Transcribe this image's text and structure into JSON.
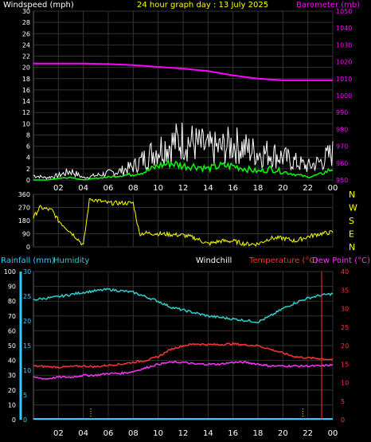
{
  "colors": {
    "background": "#000000",
    "wind": "#ffffff",
    "wind_avg": "#00ff00",
    "barometer": "#ff00ff",
    "direction": "#ffff00",
    "rain": "#33ccff",
    "humidity": "#33cccc",
    "temperature": "#ff3333",
    "dewpoint": "#ff33ff",
    "windchill": "#ffffff",
    "grid": "#333333"
  },
  "chart_data": [
    {
      "type": "line",
      "title": "24 hour graph day : 13 July 2025",
      "left_label": "Windspeed (mph)",
      "right_label": "Barometer (mb)",
      "x_ticks": [
        "02",
        "04",
        "06",
        "08",
        "10",
        "12",
        "14",
        "16",
        "18",
        "20",
        "22",
        "00"
      ],
      "y_left_ticks": [
        "0",
        "2",
        "4",
        "6",
        "8",
        "10",
        "12",
        "14",
        "16",
        "18",
        "20",
        "22",
        "24",
        "26",
        "28",
        "30"
      ],
      "y_left_range": [
        0,
        30
      ],
      "y_right_ticks": [
        "950",
        "960",
        "970",
        "980",
        "990",
        "1000",
        "1010",
        "1020",
        "1030",
        "1040",
        "1050"
      ],
      "y_right_range": [
        950,
        1050
      ],
      "series": [
        {
          "key": "barometer",
          "axis": "right",
          "x": [
            0,
            2,
            4,
            6,
            8,
            10,
            12,
            14,
            16,
            18,
            20,
            22,
            24
          ],
          "y": [
            1019,
            1019,
            1019,
            1018.7,
            1018,
            1017,
            1016,
            1014.5,
            1012,
            1010,
            1009,
            1009,
            1009
          ]
        },
        {
          "key": "wind_gust",
          "axis": "left",
          "x": [
            0,
            1,
            2,
            3,
            4,
            5,
            6,
            7,
            8,
            9,
            10,
            11,
            12,
            13,
            14,
            15,
            16,
            17,
            18,
            19,
            20,
            21,
            22,
            23,
            24
          ],
          "y": [
            1,
            0.5,
            1,
            2,
            0.5,
            1,
            1.5,
            2,
            3,
            5,
            7,
            8,
            9,
            8,
            7,
            7,
            8,
            7,
            6,
            6,
            5,
            4,
            3,
            4,
            6
          ]
        },
        {
          "key": "wind_avg",
          "axis": "left",
          "x": [
            0,
            1,
            2,
            3,
            4,
            5,
            6,
            7,
            8,
            9,
            10,
            11,
            12,
            13,
            14,
            15,
            16,
            17,
            18,
            19,
            20,
            21,
            22,
            23,
            24
          ],
          "y": [
            0,
            0,
            0.3,
            0.5,
            0,
            0.3,
            0.5,
            0.8,
            1,
            1.5,
            2.5,
            3,
            2.5,
            2.5,
            2,
            2.5,
            2.5,
            2,
            1.5,
            2,
            1.5,
            1,
            0.5,
            1,
            2
          ]
        }
      ]
    },
    {
      "type": "line",
      "title": "",
      "right_labels": [
        "N",
        "W",
        "S",
        "E",
        "N"
      ],
      "y_left_ticks": [
        "360",
        "270",
        "180",
        "90",
        "0"
      ],
      "y_left_range": [
        0,
        360
      ],
      "series": [
        {
          "key": "direction",
          "x": [
            0,
            0.5,
            1,
            1.5,
            2,
            2.5,
            3,
            3.5,
            4,
            4.5,
            5,
            5.5,
            6,
            6.5,
            7,
            7.5,
            8,
            8.5,
            9,
            10,
            11,
            12,
            13,
            14,
            15,
            16,
            17,
            18,
            19,
            20,
            21,
            22,
            23,
            24
          ],
          "y": [
            200,
            270,
            260,
            250,
            180,
            140,
            100,
            60,
            10,
            330,
            320,
            310,
            300,
            300,
            300,
            300,
            300,
            90,
            95,
            90,
            85,
            80,
            60,
            20,
            40,
            40,
            20,
            20,
            60,
            60,
            40,
            70,
            90,
            100
          ]
        }
      ]
    },
    {
      "type": "line",
      "title": "",
      "labels": {
        "rain": "Rainfall (mm)",
        "humidity": "Humidity",
        "windchill": "Windchill",
        "temperature": "Temperature (°C)",
        "dewpoint": "Dew Point (°C)"
      },
      "x_ticks": [
        "02",
        "04",
        "06",
        "08",
        "10",
        "12",
        "14",
        "16",
        "18",
        "20",
        "22",
        "00"
      ],
      "y_humidity_ticks": [
        "0",
        "10",
        "20",
        "30",
        "40",
        "50",
        "60",
        "70",
        "80",
        "90",
        "100"
      ],
      "y_humidity_range": [
        0,
        100
      ],
      "y_rain_ticks": [
        "0",
        "5",
        "10",
        "15",
        "20",
        "25",
        "30"
      ],
      "y_rain_range": [
        0,
        30
      ],
      "y_temp_ticks": [
        "0",
        "5",
        "10",
        "15",
        "20",
        "25",
        "30",
        "35",
        "40"
      ],
      "y_temp_range": [
        0,
        40
      ],
      "series": [
        {
          "key": "humidity",
          "axis": "humidity",
          "x": [
            0,
            2,
            4,
            5,
            6,
            7,
            8,
            9,
            10,
            11,
            12,
            13,
            14,
            15,
            16,
            17,
            18,
            19,
            20,
            21,
            22,
            23,
            24
          ],
          "y": [
            81,
            83,
            86,
            87,
            88,
            87,
            86,
            83,
            80,
            76,
            74,
            72,
            70,
            69,
            68,
            67,
            66,
            70,
            75,
            79,
            82,
            84,
            85
          ]
        },
        {
          "key": "temperature",
          "axis": "temp",
          "x": [
            0,
            2,
            4,
            5,
            6,
            7,
            8,
            9,
            10,
            11,
            12,
            13,
            14,
            15,
            16,
            17,
            18,
            19,
            20,
            21,
            22,
            23,
            24
          ],
          "y": [
            14.5,
            14.2,
            14.5,
            14.3,
            14.7,
            15,
            15.5,
            16,
            17,
            19,
            20,
            20.5,
            20.3,
            20.3,
            20.5,
            20.2,
            20,
            19,
            18,
            17,
            16.7,
            16.5,
            16.2
          ]
        },
        {
          "key": "dewpoint",
          "axis": "temp",
          "x": [
            0,
            1,
            2,
            3,
            4,
            5,
            6,
            7,
            8,
            9,
            10,
            11,
            12,
            13,
            14,
            15,
            16,
            17,
            18,
            19,
            20,
            21,
            22,
            23,
            24
          ],
          "y": [
            11.5,
            11,
            11.5,
            11.5,
            12,
            12,
            12.5,
            12.5,
            13,
            14,
            15,
            15.5,
            15.5,
            15,
            15,
            15,
            15.5,
            15.5,
            15,
            14.5,
            14.5,
            14.5,
            14.5,
            14.5,
            14.8
          ]
        },
        {
          "key": "rain",
          "axis": "rain",
          "x": [
            0,
            24
          ],
          "y": [
            0,
            0
          ]
        }
      ]
    }
  ]
}
